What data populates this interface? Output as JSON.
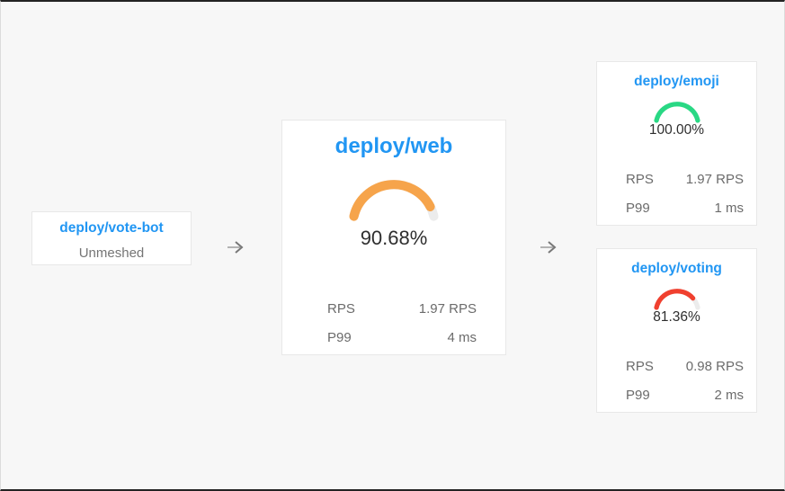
{
  "canvas": {
    "background": "#f7f7f7",
    "frame_border_color": "#232323"
  },
  "colors": {
    "node_title_blue": "#2196f3",
    "percent_text": "#2e2e2e",
    "stats_text_gray": "#6b6b6b",
    "status_text_gray": "#757575",
    "gauge_track_gray": "#ececec",
    "arrow_gray": "#b3b3b3",
    "arrow_head_gray": "#777777"
  },
  "nodes": {
    "vote_bot": {
      "title": "deploy/vote-bot",
      "status": "Unmeshed"
    },
    "web": {
      "title": "deploy/web",
      "success_rate": "90.68%",
      "gauge": {
        "percent": 90.68,
        "color": "#f6a44b",
        "track": "#ececec"
      },
      "stats": [
        {
          "label": "RPS",
          "value": "1.97 RPS"
        },
        {
          "label": "P99",
          "value": "4 ms"
        }
      ]
    },
    "emoji": {
      "title": "deploy/emoji",
      "success_rate": "100.00%",
      "gauge": {
        "percent": 100,
        "color": "#29d884",
        "track": "#ececec"
      },
      "stats": [
        {
          "label": "RPS",
          "value": "1.97 RPS"
        },
        {
          "label": "P99",
          "value": "1 ms"
        }
      ]
    },
    "voting": {
      "title": "deploy/voting",
      "success_rate": "81.36%",
      "gauge": {
        "percent": 81.36,
        "color": "#f0402f",
        "track": "#ececec"
      },
      "stats": [
        {
          "label": "RPS",
          "value": "0.98 RPS"
        },
        {
          "label": "P99",
          "value": "2 ms"
        }
      ]
    }
  }
}
